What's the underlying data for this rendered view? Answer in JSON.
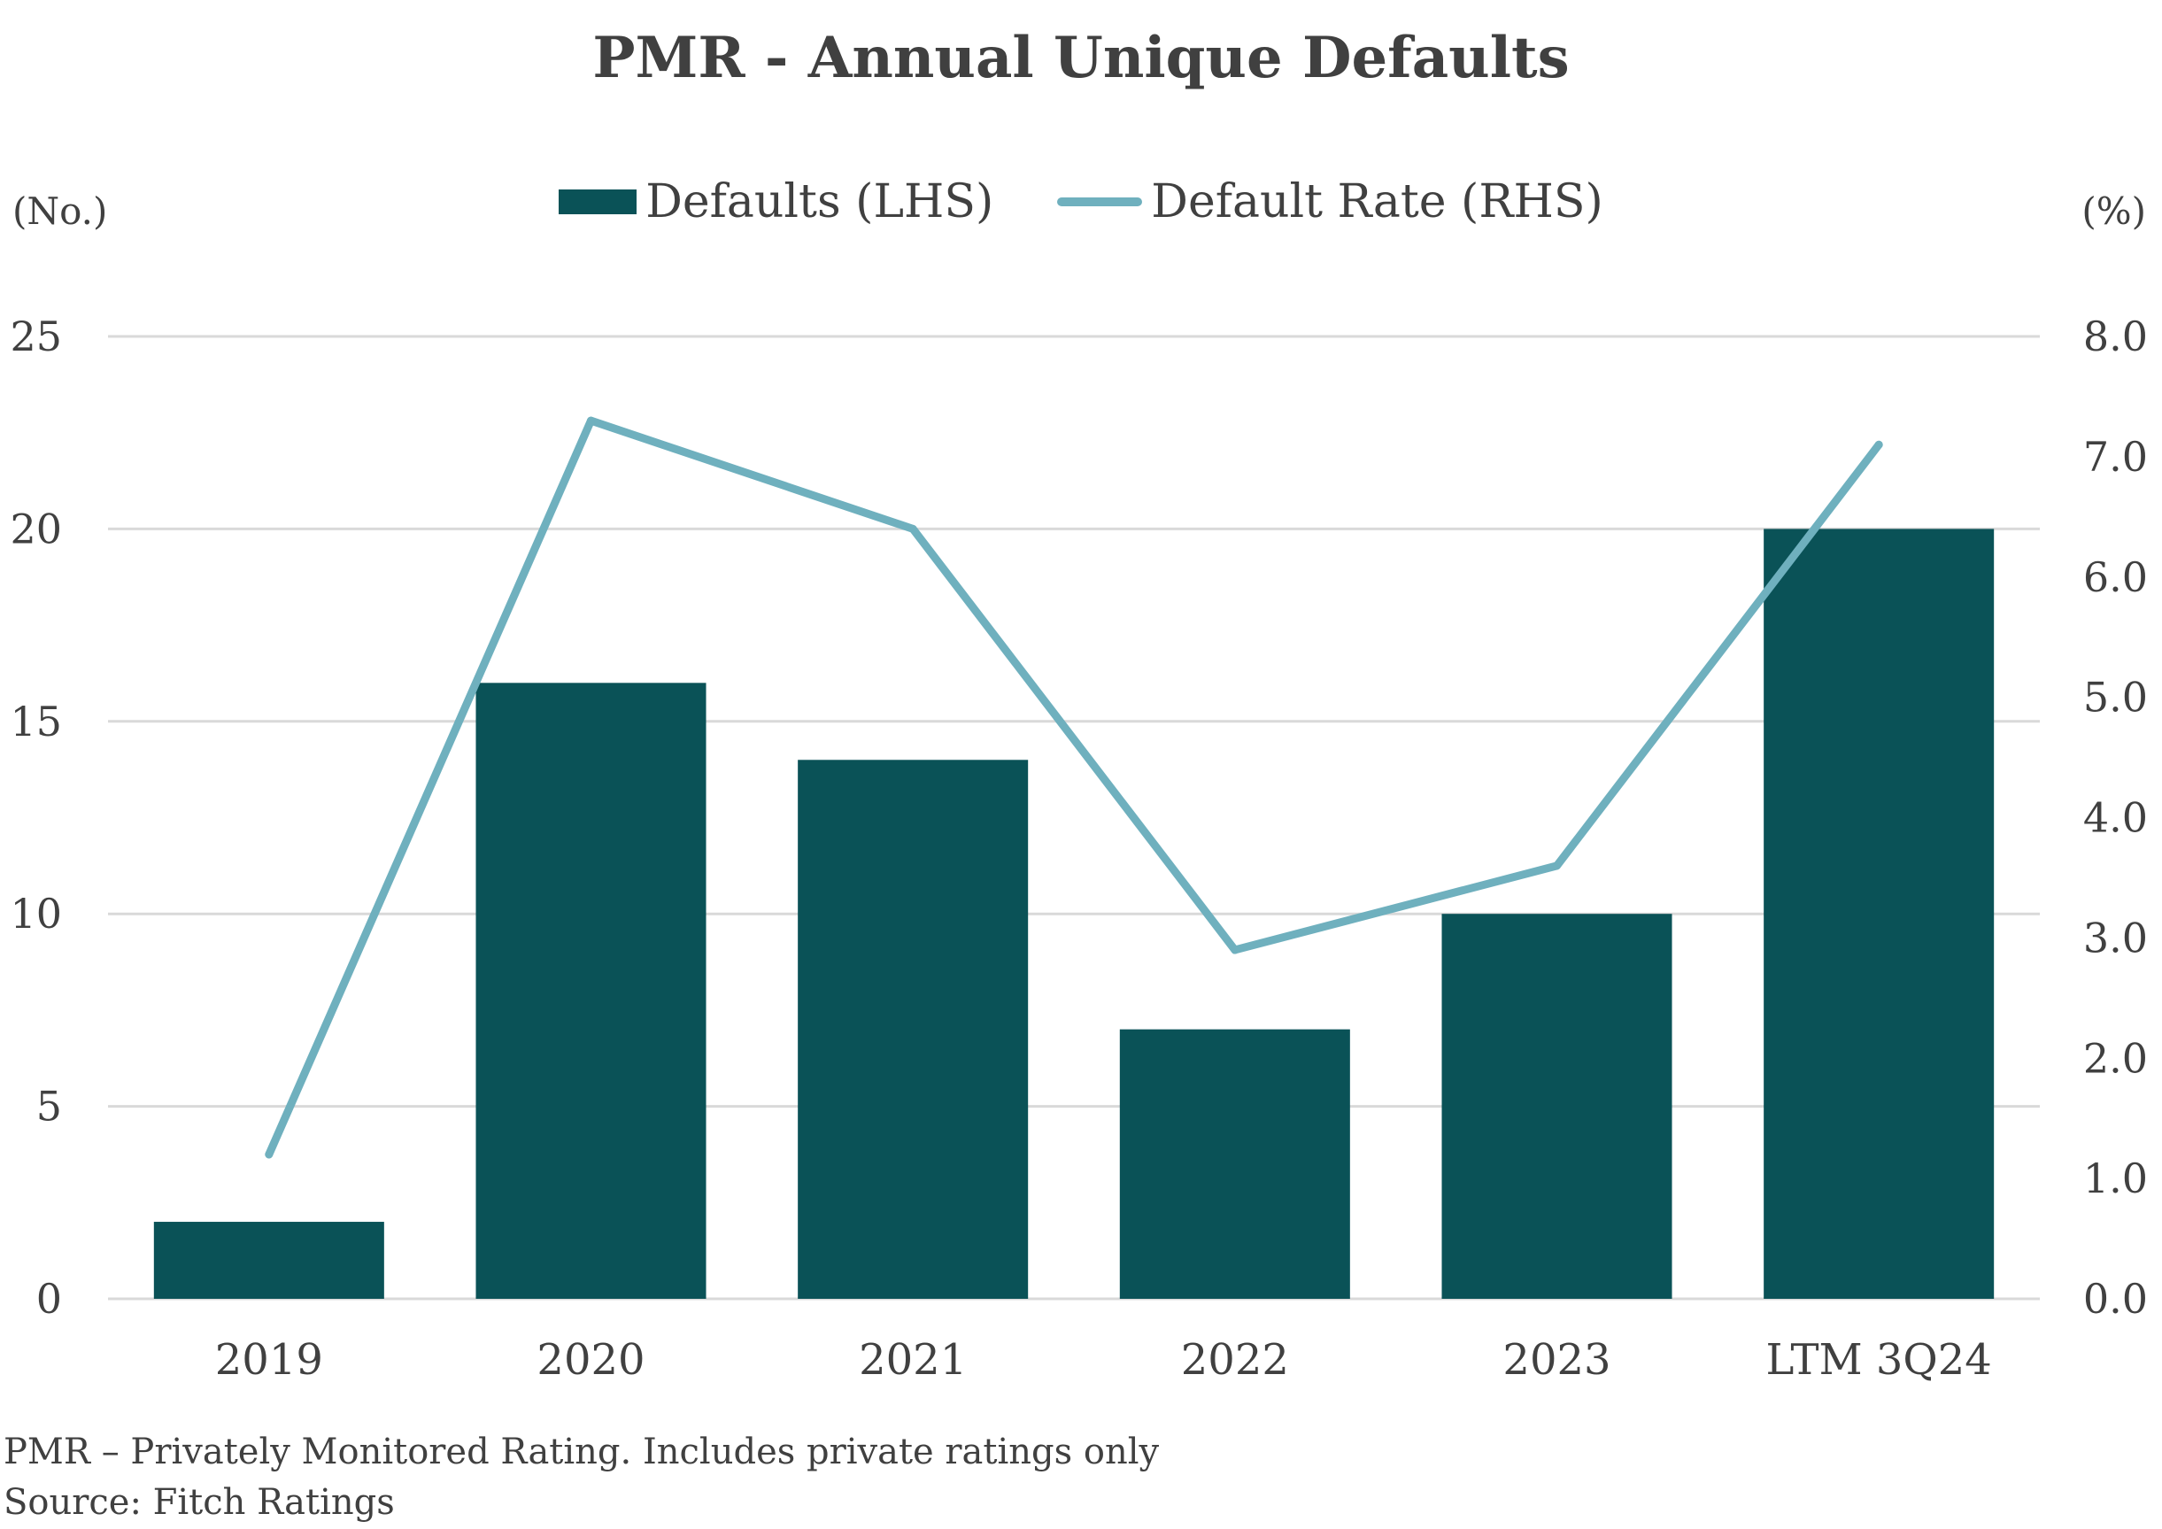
{
  "title": "PMR - Annual Unique Defaults",
  "legend": {
    "bars": "Defaults (LHS)",
    "line": "Default Rate (RHS)"
  },
  "axes": {
    "left_unit": "(No.)",
    "right_unit": "(%)"
  },
  "chart_data": {
    "type": "bar",
    "title": "PMR - Annual Unique Defaults",
    "categories": [
      "2019",
      "2020",
      "2021",
      "2022",
      "2023",
      "LTM 3Q24"
    ],
    "series": [
      {
        "name": "Defaults (LHS)",
        "type": "bar",
        "axis": "left",
        "values": [
          2,
          16,
          14,
          7,
          10,
          20
        ]
      },
      {
        "name": "Default Rate (RHS)",
        "type": "line",
        "axis": "right",
        "values": [
          1.2,
          7.3,
          6.4,
          2.9,
          3.6,
          7.1
        ]
      }
    ],
    "y_left": {
      "label": "(No.)",
      "min": 0,
      "max": 25,
      "ticks": [
        "0",
        "5",
        "10",
        "15",
        "20",
        "25"
      ]
    },
    "y_right": {
      "label": "(%)",
      "min": 0,
      "max": 8,
      "ticks": [
        "0.0",
        "1.0",
        "2.0",
        "3.0",
        "4.0",
        "5.0",
        "6.0",
        "7.0",
        "8.0"
      ]
    },
    "grid": true,
    "legend_position": "top-center",
    "colors": {
      "bars": "#0a5257",
      "line": "#6fb0be",
      "grid": "#d9d9d9"
    }
  },
  "footnotes": {
    "note": "PMR – Privately Monitored Rating. Includes private ratings only",
    "source": "Source: Fitch Ratings"
  }
}
